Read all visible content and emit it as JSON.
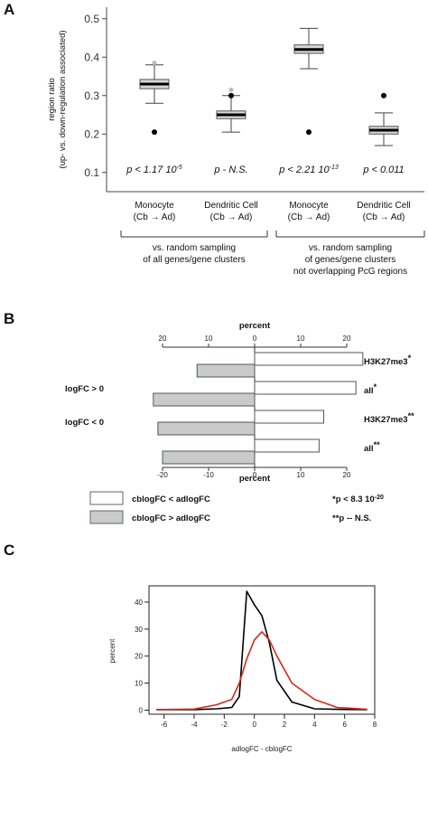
{
  "panels": {
    "a": "A",
    "b": "B",
    "c": "C"
  },
  "chart_data": [
    {
      "type": "box",
      "panel": "A",
      "ylabel_line1": "region ratio",
      "ylabel_line2": "(up- vs. down-regulation associated)",
      "ylim": [
        0.05,
        0.53
      ],
      "yticks": [
        0.1,
        0.2,
        0.3,
        0.4,
        0.5
      ],
      "ytick_labels": [
        "0.1",
        "0.2",
        "0.3",
        "0.4",
        "0.5"
      ],
      "boxes": [
        {
          "category_line1": "Monocyte",
          "category_line2": "(Cb → Ad)",
          "whisker_low": 0.28,
          "q1": 0.318,
          "median": 0.33,
          "q3": 0.342,
          "whisker_high": 0.38,
          "outlier_grey": 0.385,
          "observed": 0.205,
          "p_text": "p < 1.17 10",
          "p_exp": "-5"
        },
        {
          "category_line1": "Dendritic Cell",
          "category_line2": "(Cb → Ad)",
          "whisker_low": 0.205,
          "q1": 0.24,
          "median": 0.25,
          "q3": 0.26,
          "whisker_high": 0.3,
          "outlier_grey": 0.315,
          "observed": 0.3,
          "p_text": "p - N.S.",
          "p_exp": ""
        },
        {
          "category_line1": "Monocyte",
          "category_line2": "(Cb → Ad)",
          "whisker_low": 0.37,
          "q1": 0.41,
          "median": 0.42,
          "q3": 0.432,
          "whisker_high": 0.475,
          "outlier_grey": null,
          "observed": 0.205,
          "p_text": "p < 2.21 10",
          "p_exp": "-13"
        },
        {
          "category_line1": "Dendritic Cell",
          "category_line2": "(Cb → Ad)",
          "whisker_low": 0.17,
          "q1": 0.2,
          "median": 0.21,
          "q3": 0.22,
          "whisker_high": 0.255,
          "outlier_grey": null,
          "observed": 0.3,
          "p_text": "p < 0.011",
          "p_exp": ""
        }
      ],
      "groups": [
        {
          "lines": [
            "vs. random sampling",
            "of all genes/gene clusters"
          ]
        },
        {
          "lines": [
            "vs. random sampling",
            "of genes/gene clusters",
            "not overlapping PcG regions"
          ]
        }
      ]
    },
    {
      "type": "bar",
      "panel": "B",
      "orientation": "horizontal",
      "axis_title": "percent",
      "xlim": [
        -20,
        20
      ],
      "xticks": [
        -20,
        -10,
        0,
        10,
        20
      ],
      "xtick_labels_top": [
        "20",
        "10",
        "0",
        "10",
        "20"
      ],
      "xtick_labels_bottom": [
        "-20",
        "-10",
        "0",
        "10",
        "20"
      ],
      "group_labels": [
        "logFC > 0",
        "logFC < 0"
      ],
      "categories": [
        {
          "label": "H3K27me3",
          "mark": "*"
        },
        {
          "label": "all",
          "mark": "*"
        },
        {
          "label": "H3K27me3",
          "mark": "**"
        },
        {
          "label": "all",
          "mark": "**"
        }
      ],
      "series": [
        {
          "name": "cblogFC < adlogFC",
          "color": "#ffffff",
          "values": [
            23.5,
            22,
            15,
            14
          ]
        },
        {
          "name": "cblogFC > adlogFC",
          "color": "#c8cbc9",
          "values": [
            -12.5,
            -22,
            -21,
            -20
          ]
        }
      ],
      "notes": [
        {
          "mark": "*",
          "text": "p < 8.3 10",
          "exp": "-20"
        },
        {
          "mark": "**",
          "text": "p -- N.S.",
          "exp": ""
        }
      ]
    },
    {
      "type": "line",
      "panel": "C",
      "xlabel": "adlogFC - cblogFC",
      "ylabel": "percent",
      "xlim": [
        -7,
        8
      ],
      "ylim": [
        -1.5,
        46
      ],
      "xticks": [
        -6,
        -4,
        -2,
        0,
        2,
        4,
        6,
        8
      ],
      "yticks": [
        0,
        10,
        20,
        30,
        40
      ],
      "grid": false,
      "series": [
        {
          "color": "#000000",
          "x": [
            -6.5,
            -4,
            -2.5,
            -1.5,
            -1,
            -0.5,
            0,
            0.5,
            1,
            1.5,
            2.5,
            4,
            5.5,
            7.5
          ],
          "y": [
            0.2,
            0.2,
            0.5,
            1,
            5,
            44,
            39,
            35,
            25,
            11,
            3,
            0.5,
            0.3,
            0.2
          ]
        },
        {
          "color": "#d42a1e",
          "x": [
            -6.5,
            -4,
            -2.5,
            -1.5,
            -1,
            -0.5,
            0,
            0.5,
            1,
            1.5,
            2.5,
            4,
            5.5,
            7.5
          ],
          "y": [
            0.2,
            0.4,
            2,
            4,
            10,
            19,
            26,
            29,
            26,
            20,
            10,
            4,
            1,
            0.3
          ]
        }
      ]
    }
  ]
}
